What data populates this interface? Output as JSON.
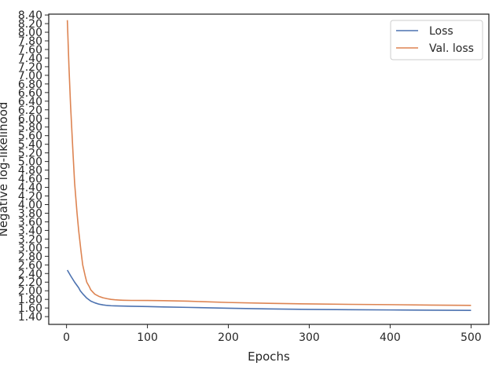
{
  "chart_data": {
    "type": "line",
    "xlabel": "Epochs",
    "ylabel": "Negative log-likelihood",
    "xlim": [
      -22,
      522
    ],
    "ylim": [
      1.22,
      8.42
    ],
    "grid": false,
    "legend_placement": "top-right",
    "x_ticks": [
      0,
      100,
      200,
      300,
      400,
      500
    ],
    "x_tick_labels": [
      "0",
      "100",
      "200",
      "300",
      "400",
      "500"
    ],
    "y_ticks": [
      1.4,
      1.6,
      1.8,
      2.0,
      2.2,
      2.4,
      2.6,
      2.8,
      3.0,
      3.2,
      3.4,
      3.6,
      3.8,
      4.0,
      4.2,
      4.4,
      4.6,
      4.8,
      5.0,
      5.2,
      5.4,
      5.6,
      5.8,
      6.0,
      6.2,
      6.4,
      6.6,
      6.8,
      7.0,
      7.2,
      7.4,
      7.6,
      7.8,
      8.0,
      8.2,
      8.4
    ],
    "y_tick_labels": [
      "1.40",
      "1.60",
      "1.80",
      "2.00",
      "2.20",
      "2.40",
      "2.60",
      "2.80",
      "3.00",
      "3.20",
      "3.40",
      "3.60",
      "3.80",
      "4.00",
      "4.20",
      "4.40",
      "4.60",
      "4.80",
      "5.00",
      "5.20",
      "5.40",
      "5.60",
      "5.80",
      "6.00",
      "6.20",
      "6.40",
      "6.60",
      "6.80",
      "7.00",
      "7.20",
      "7.40",
      "7.60",
      "7.80",
      "8.00",
      "8.20",
      "8.40"
    ],
    "series": [
      {
        "name": "Loss",
        "color": "#4c72b0",
        "x": [
          1,
          5,
          10,
          15,
          17,
          20,
          25,
          30,
          35,
          40,
          45,
          50,
          55,
          60,
          70,
          80,
          100,
          120,
          150,
          200,
          250,
          300,
          350,
          400,
          450,
          500
        ],
        "y": [
          2.48,
          2.35,
          2.2,
          2.07,
          2.0,
          1.93,
          1.83,
          1.76,
          1.72,
          1.69,
          1.672,
          1.66,
          1.653,
          1.649,
          1.645,
          1.64,
          1.633,
          1.625,
          1.614,
          1.594,
          1.578,
          1.567,
          1.56,
          1.555,
          1.55,
          1.545
        ]
      },
      {
        "name": "Val. loss",
        "color": "#dd8452",
        "x": [
          1,
          3,
          5,
          8,
          10,
          13,
          15,
          18,
          20,
          23,
          25,
          28,
          30,
          33,
          35,
          40,
          45,
          50,
          55,
          60,
          65,
          70,
          80,
          100,
          120,
          150,
          200,
          250,
          300,
          350,
          400,
          450,
          500
        ],
        "y": [
          8.28,
          7.2,
          6.3,
          5.2,
          4.5,
          3.8,
          3.4,
          2.9,
          2.6,
          2.35,
          2.2,
          2.1,
          2.02,
          1.96,
          1.92,
          1.87,
          1.838,
          1.817,
          1.8,
          1.79,
          1.784,
          1.78,
          1.776,
          1.774,
          1.77,
          1.758,
          1.728,
          1.708,
          1.695,
          1.685,
          1.678,
          1.668,
          1.66
        ]
      }
    ]
  }
}
